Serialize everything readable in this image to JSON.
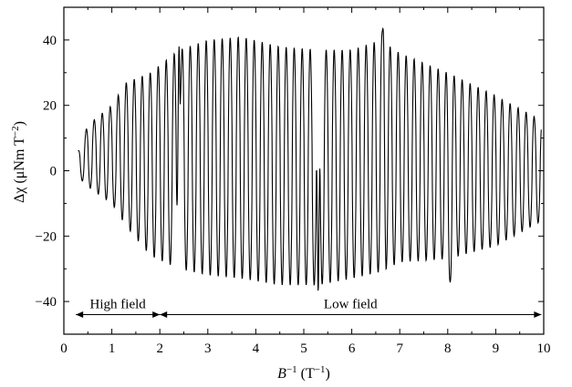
{
  "chart_data": {
    "type": "line",
    "xlabel": {
      "main": "B",
      "sup1": "−1",
      "unit": "(T",
      "sup2": "−1",
      "close": ")"
    },
    "ylabel": {
      "main": "Δχ (μNm T",
      "sup": "−2",
      "close": ")"
    },
    "xlim": [
      0,
      10
    ],
    "ylim": [
      -50,
      50
    ],
    "x_ticks": [
      0,
      1,
      2,
      3,
      4,
      5,
      6,
      7,
      8,
      9,
      10
    ],
    "y_ticks": [
      -40,
      -20,
      0,
      20,
      40
    ],
    "x_tick_labels": [
      "0",
      "1",
      "2",
      "3",
      "4",
      "5",
      "6",
      "7",
      "8",
      "9",
      "10"
    ],
    "y_tick_labels": [
      "−40",
      "−20",
      "0",
      "20",
      "40"
    ],
    "grid": false,
    "series": [
      {
        "x_start": 0.3,
        "x_end": 9.95,
        "oscillation_frequency_per_unit_x": 6.0,
        "upper_envelope": [
          [
            0.3,
            6
          ],
          [
            0.5,
            14
          ],
          [
            1.0,
            20
          ],
          [
            1.3,
            27
          ],
          [
            1.8,
            30
          ],
          [
            2.4,
            37
          ],
          [
            3.0,
            40
          ],
          [
            3.7,
            41
          ],
          [
            4.5,
            38
          ],
          [
            5.3,
            37
          ],
          [
            6.0,
            37
          ],
          [
            6.6,
            40
          ],
          [
            7.0,
            36
          ],
          [
            8.0,
            30
          ],
          [
            9.0,
            23
          ],
          [
            10.0,
            15
          ]
        ],
        "lower_envelope": [
          [
            0.3,
            -2
          ],
          [
            0.6,
            -6
          ],
          [
            1.0,
            -10
          ],
          [
            1.3,
            -17
          ],
          [
            1.8,
            -26
          ],
          [
            2.4,
            -30
          ],
          [
            3.0,
            -32
          ],
          [
            3.7,
            -33
          ],
          [
            4.5,
            -35
          ],
          [
            5.3,
            -35
          ],
          [
            6.0,
            -33
          ],
          [
            6.6,
            -31
          ],
          [
            7.0,
            -28
          ],
          [
            8.0,
            -27
          ],
          [
            9.0,
            -23
          ],
          [
            10.0,
            -15
          ]
        ],
        "notable_points": [
          [
            5.3,
            -37
          ],
          [
            6.65,
            43.5
          ],
          [
            2.4,
            38
          ],
          [
            8.05,
            -34
          ]
        ]
      }
    ],
    "annotations": [
      {
        "label": "High field",
        "x_from": 0.25,
        "x_to": 2.0,
        "y": -44
      },
      {
        "label": "Low field",
        "x_from": 2.0,
        "x_to": 9.95,
        "y": -44
      }
    ]
  }
}
